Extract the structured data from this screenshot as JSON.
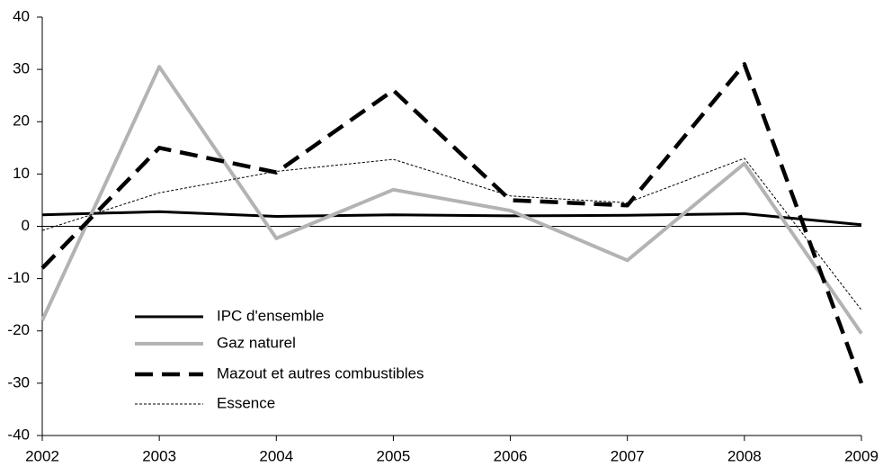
{
  "chart_data": {
    "type": "line",
    "x": [
      2002,
      2003,
      2004,
      2005,
      2006,
      2007,
      2008,
      2009
    ],
    "series": [
      {
        "name": "IPC d'ensemble",
        "color": "#000000",
        "values": [
          2.2,
          2.8,
          1.9,
          2.2,
          2.0,
          2.1,
          2.4,
          0.3
        ]
      },
      {
        "name": "Gaz naturel",
        "color": "#b3b3b3",
        "values": [
          -18,
          30.5,
          -2.3,
          7.0,
          3.0,
          -6.5,
          12.0,
          -20.5
        ]
      },
      {
        "name": "Mazout et autres combustibles",
        "color": "#000000",
        "values": [
          -8,
          15,
          10.3,
          26,
          5,
          4,
          31,
          -30
        ]
      },
      {
        "name": "Essence",
        "color": "#000000",
        "values": [
          -0.8,
          6.4,
          10.5,
          12.8,
          5.8,
          4.5,
          13.0,
          -16
        ]
      }
    ],
    "xlim": [
      2002,
      2009
    ],
    "xticks": [
      2002,
      2003,
      2004,
      2005,
      2006,
      2007,
      2008,
      2009
    ],
    "ylim": [
      -40,
      40
    ],
    "yticks": [
      -40,
      -30,
      -20,
      -10,
      0,
      10,
      20,
      30,
      40
    ],
    "grid": false,
    "legend": "lower left"
  }
}
